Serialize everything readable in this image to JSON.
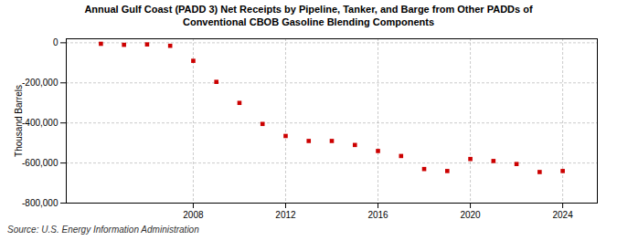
{
  "chart_data": {
    "type": "scatter",
    "title": "Annual Gulf Coast (PADD 3) Net Receipts by Pipeline, Tanker, and Barge from Other PADDs of\nConventional CBOB Gasoline Blending Components",
    "ylabel": "Thousand Barrels",
    "source": "Source: U.S. Energy Information Administration",
    "x": [
      2004,
      2005,
      2006,
      2007,
      2008,
      2009,
      2010,
      2011,
      2012,
      2013,
      2014,
      2015,
      2016,
      2017,
      2018,
      2019,
      2020,
      2021,
      2022,
      2023,
      2024
    ],
    "values": [
      -5000,
      -10000,
      -8000,
      -15000,
      -90000,
      -195000,
      -300000,
      -405000,
      -465000,
      -490000,
      -490000,
      -510000,
      -540000,
      -565000,
      -630000,
      -640000,
      -580000,
      -590000,
      -605000,
      -645000,
      -640000
    ],
    "color": "#cc0000",
    "marker": "square",
    "xlim": [
      2002.5,
      2025.5
    ],
    "xticks": [
      2008,
      2012,
      2016,
      2020,
      2024
    ],
    "ylim": [
      -800000,
      20000
    ],
    "yticks": [
      0,
      {
        "value": -200000,
        "label": "-200,000"
      },
      {
        "value": -400000,
        "label": "-400,000"
      },
      {
        "value": -600000,
        "label": "-600,000"
      },
      {
        "value": -800000,
        "label": "-800,000"
      }
    ],
    "grid": true
  }
}
